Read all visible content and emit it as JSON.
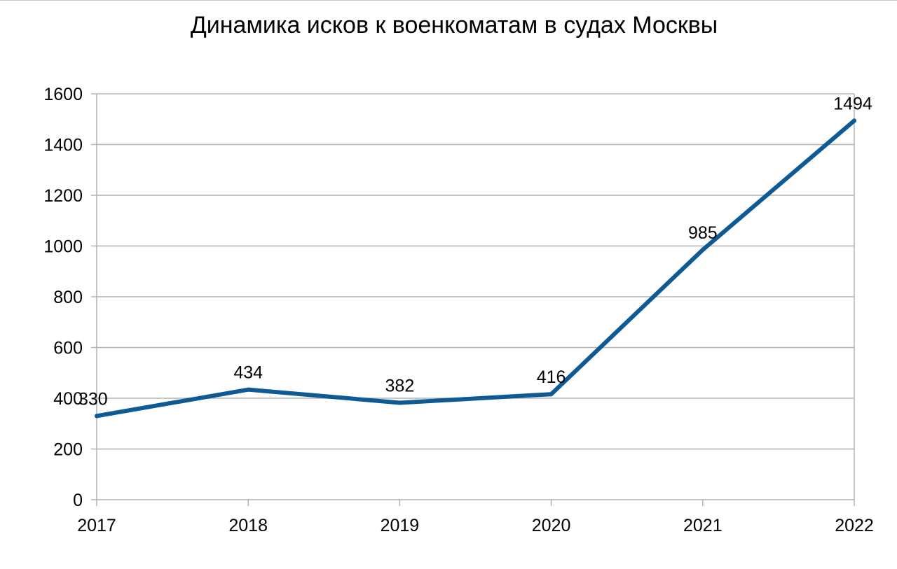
{
  "chart_data": {
    "type": "line",
    "title": "Динамика исков к военкоматам в судах Москвы",
    "xlabel": "",
    "ylabel": "",
    "categories": [
      "2017",
      "2018",
      "2019",
      "2020",
      "2021",
      "2022"
    ],
    "series": [
      {
        "values": [
          330,
          434,
          382,
          416,
          985,
          1494
        ],
        "data_labels": [
          "330",
          "434",
          "382",
          "416",
          "985",
          "1494"
        ],
        "color": "#0e5a94"
      }
    ],
    "ylim": [
      0,
      1600
    ],
    "yticks": [
      "0",
      "200",
      "400",
      "600",
      "800",
      "1000",
      "1200",
      "1400",
      "1600"
    ],
    "grid": true,
    "legend": "none"
  }
}
